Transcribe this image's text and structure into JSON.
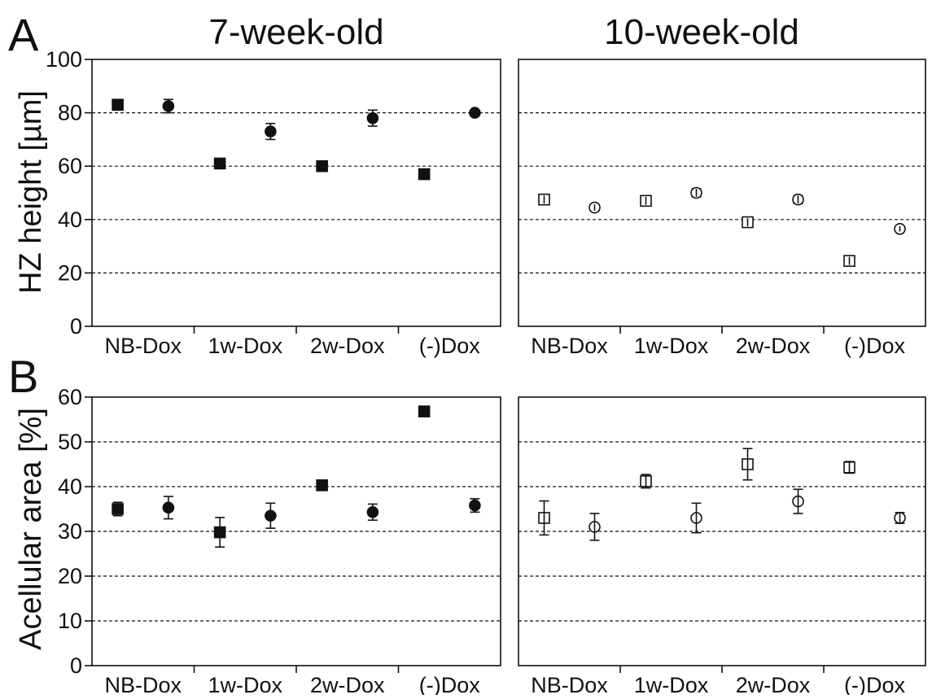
{
  "figure": {
    "panel_labels": [
      "A",
      "B"
    ],
    "column_titles": [
      "7-week-old",
      "10-week-old"
    ],
    "ylabels": [
      "HZ height [µm]",
      "Acellular area [%]"
    ]
  },
  "chart_data": [
    {
      "type": "scatter",
      "panel": "A",
      "column": "7-week-old",
      "title": "7-week-old",
      "xlabel": "",
      "ylabel": "HZ height [µm]",
      "categories": [
        "NB-Dox",
        "1w-Dox",
        "2w-Dox",
        "(-)Dox"
      ],
      "ylim": [
        0,
        100
      ],
      "yticks": [
        0,
        20,
        40,
        60,
        80,
        100
      ],
      "grid_y": [
        20,
        40,
        60,
        80
      ],
      "series": [
        {
          "marker": "filled-square",
          "values": [
            83,
            61,
            60,
            57
          ],
          "errors": [
            2,
            1.5,
            1,
            1
          ]
        },
        {
          "marker": "filled-circle",
          "values": [
            82.5,
            73,
            78,
            80
          ],
          "errors": [
            2.5,
            3,
            3,
            0.8
          ]
        }
      ]
    },
    {
      "type": "scatter",
      "panel": "A",
      "column": "10-week-old",
      "title": "10-week-old",
      "xlabel": "",
      "ylabel": "",
      "categories": [
        "NB-Dox",
        "1w-Dox",
        "2w-Dox",
        "(-)Dox"
      ],
      "ylim": [
        0,
        100
      ],
      "yticks": [],
      "grid_y": [
        20,
        40,
        60,
        80
      ],
      "series": [
        {
          "marker": "open-square",
          "values": [
            47.5,
            47,
            39,
            24.5
          ],
          "errors": [
            1.5,
            1.5,
            1.5,
            1.5
          ]
        },
        {
          "marker": "open-circle",
          "values": [
            44.5,
            50,
            47.5,
            36.5
          ],
          "errors": [
            1.2,
            1.5,
            1.5,
            1
          ]
        }
      ]
    },
    {
      "type": "scatter",
      "panel": "B",
      "column": "7-week-old",
      "title": "",
      "xlabel": "",
      "ylabel": "Acellular area [%]",
      "categories": [
        "NB-Dox",
        "1w-Dox",
        "2w-Dox",
        "(-)Dox"
      ],
      "ylim": [
        0,
        60
      ],
      "yticks": [
        0,
        10,
        20,
        30,
        40,
        50,
        60
      ],
      "grid_y": [
        10,
        20,
        30,
        40,
        50
      ],
      "series": [
        {
          "marker": "filled-square",
          "values": [
            35,
            29.8,
            40.3,
            56.8
          ],
          "errors": [
            1.5,
            3.3,
            0.5,
            0.5
          ]
        },
        {
          "marker": "filled-circle",
          "values": [
            35.3,
            33.5,
            34.3,
            35.8
          ],
          "errors": [
            2.5,
            2.8,
            1.8,
            1.5
          ]
        }
      ]
    },
    {
      "type": "scatter",
      "panel": "B",
      "column": "10-week-old",
      "title": "",
      "xlabel": "",
      "ylabel": "",
      "categories": [
        "NB-Dox",
        "1w-Dox",
        "2w-Dox",
        "(-)Dox"
      ],
      "ylim": [
        0,
        60
      ],
      "yticks": [],
      "grid_y": [
        10,
        20,
        30,
        40,
        50
      ],
      "series": [
        {
          "marker": "open-square",
          "values": [
            33,
            41.2,
            45,
            44.3
          ],
          "errors": [
            3.8,
            1.5,
            3.5,
            1.3
          ]
        },
        {
          "marker": "open-circle",
          "values": [
            31,
            33,
            36.7,
            33
          ],
          "errors": [
            3,
            3.3,
            2.7,
            1.2
          ]
        }
      ]
    }
  ]
}
